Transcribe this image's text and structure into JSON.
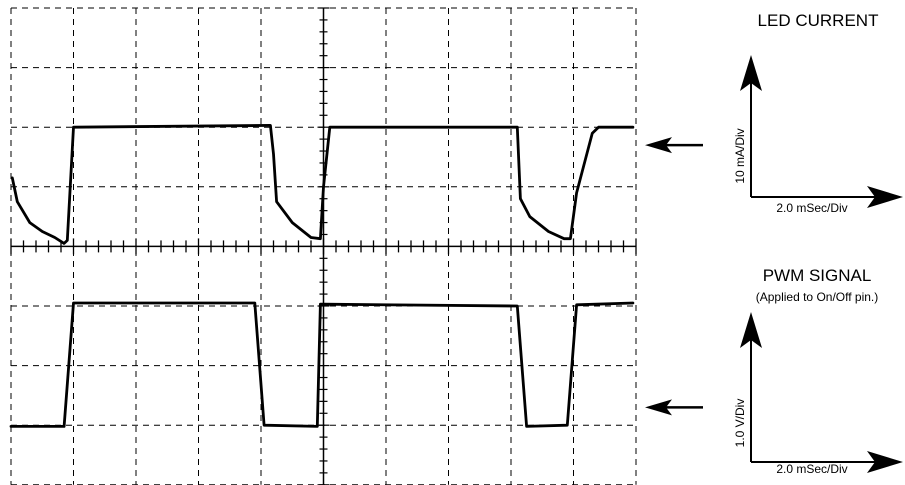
{
  "chart_data": {
    "type": "line",
    "x_units": "divisions",
    "y_units": "divisions",
    "grid": true,
    "xlim": [
      0,
      10
    ],
    "ylim": [
      0,
      8
    ],
    "series": [
      {
        "name": "LED CURRENT",
        "x": [
          0.02,
          0.1,
          0.3,
          0.5,
          0.7,
          0.85,
          0.9,
          1.0,
          4.15,
          4.2,
          4.25,
          4.5,
          4.8,
          4.95,
          5.0,
          5.1,
          8.1,
          8.15,
          8.3,
          8.6,
          8.85,
          8.95,
          9.05,
          9.3,
          9.4,
          9.95
        ],
        "y": [
          5.15,
          4.75,
          4.4,
          4.25,
          4.15,
          4.05,
          4.1,
          6.0,
          6.03,
          5.55,
          4.75,
          4.4,
          4.15,
          4.13,
          5.0,
          6.0,
          6.0,
          4.8,
          4.5,
          4.25,
          4.13,
          4.13,
          4.9,
          5.9,
          6.0,
          6.0
        ]
      },
      {
        "name": "PWM SIGNAL",
        "x": [
          0.0,
          0.85,
          1.0,
          3.9,
          4.05,
          4.9,
          4.95,
          5.0,
          8.1,
          8.25,
          8.9,
          9.05,
          9.95
        ],
        "y": [
          0.98,
          0.98,
          3.05,
          3.05,
          1.0,
          0.98,
          3.03,
          3.03,
          3.0,
          0.98,
          1.0,
          3.02,
          3.05
        ]
      }
    ],
    "panels": [
      {
        "title": "LED CURRENT",
        "subtitle": "",
        "ylabel": "10 mA/Div",
        "xlabel": "2.0 mSec/Div",
        "marker_level": 5.7
      },
      {
        "title": "PWM SIGNAL",
        "subtitle": "(Applied to On/Off pin.)",
        "ylabel": "1.0 V/Div",
        "xlabel": "2.0 mSec/Div",
        "marker_level": 1.3
      }
    ],
    "colors": {
      "trace": "#000000",
      "grid": "#000000",
      "background": "#ffffff"
    }
  }
}
